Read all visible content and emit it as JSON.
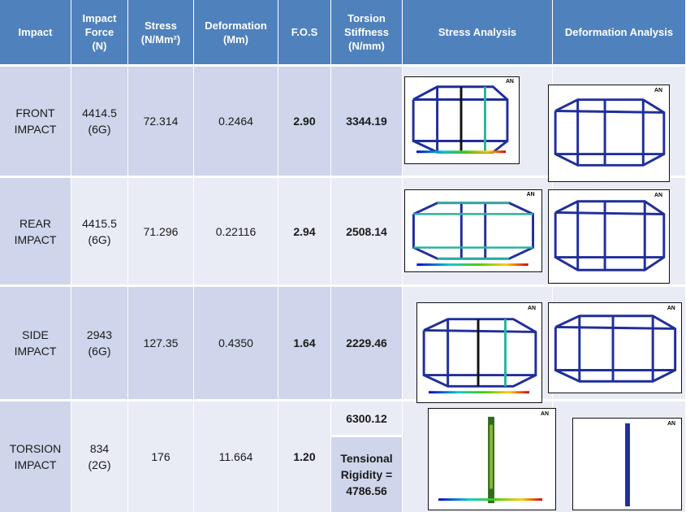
{
  "headers": [
    "Impact",
    "Impact\nForce\n(N)",
    "Stress\n(N/Mm²)",
    "Deformation\n(Mm)",
    "F.O.S",
    "Torsion\nStiffness\n(N/mm)",
    "Stress Analysis",
    "Deformation  Analysis"
  ],
  "rows": [
    {
      "impact": "FRONT\nIMPACT",
      "force": "4414.5\n(6G)",
      "stress": "72.314",
      "deformation": "0.2464",
      "fos": "2.90",
      "stiffness": "3344.19"
    },
    {
      "impact": "REAR\nIMPACT",
      "force": "4415.5\n(6G)",
      "stress": "71.296",
      "deformation": "0.22116",
      "fos": "2.94",
      "stiffness": "2508.14"
    },
    {
      "impact": "SIDE\nIMPACT",
      "force": "2943\n(6G)",
      "stress": "127.35",
      "deformation": "0.4350",
      "fos": "1.64",
      "stiffness": "2229.46"
    },
    {
      "impact": "TORSION\nIMPACT",
      "force": "834\n(2G)",
      "stress": "176",
      "deformation": "11.664",
      "fos": "1.20",
      "stiffness": "6300.12",
      "rigidity": "Tensional\nRigidity =\n4786.56"
    }
  ],
  "software_logo": "AN",
  "colors": {
    "header_bg": "#4f81bd",
    "row_dark": "#cfd5ea",
    "row_light": "#e9ebf5",
    "frame_blue": "#1f2f9a",
    "stress_hot": "#2ab3a0"
  }
}
